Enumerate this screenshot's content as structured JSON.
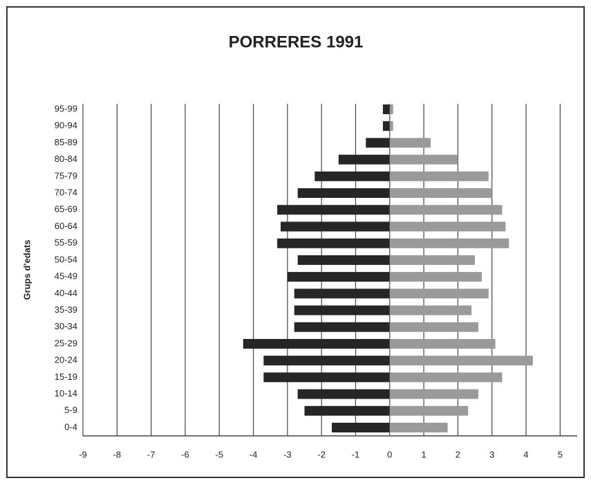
{
  "chart_data": {
    "type": "bar",
    "orientation": "horizontal",
    "title": "PORRERES 1991",
    "y_label": "Grups d'edats",
    "categories": [
      "0-4",
      "5-9",
      "10-14",
      "15-19",
      "20-24",
      "25-29",
      "30-34",
      "35-39",
      "40-44",
      "45-49",
      "50-54",
      "55-59",
      "60-64",
      "65-69",
      "70-74",
      "75-79",
      "80-84",
      "85-89",
      "90-94",
      "95-99"
    ],
    "series": [
      {
        "color": "#262626",
        "values": [
          -1.7,
          -2.5,
          -2.7,
          -3.7,
          -3.7,
          -4.3,
          -2.8,
          -2.8,
          -2.8,
          -3.0,
          -2.7,
          -3.3,
          -3.2,
          -3.3,
          -2.7,
          -2.2,
          -1.5,
          -0.7,
          -0.2,
          -0.2
        ]
      },
      {
        "color": "#9a9a9a",
        "values": [
          1.7,
          2.3,
          2.6,
          3.3,
          4.2,
          3.1,
          2.6,
          2.4,
          2.9,
          2.7,
          2.5,
          3.5,
          3.4,
          3.3,
          3.0,
          2.9,
          2.0,
          1.2,
          0.1,
          0.1
        ]
      }
    ],
    "xlim": [
      -9,
      5.5
    ],
    "xticks": [
      -9,
      -8,
      -7,
      -6,
      -5,
      -4,
      -3,
      -2,
      -1,
      0,
      1,
      2,
      3,
      4,
      5
    ],
    "grid": true
  }
}
